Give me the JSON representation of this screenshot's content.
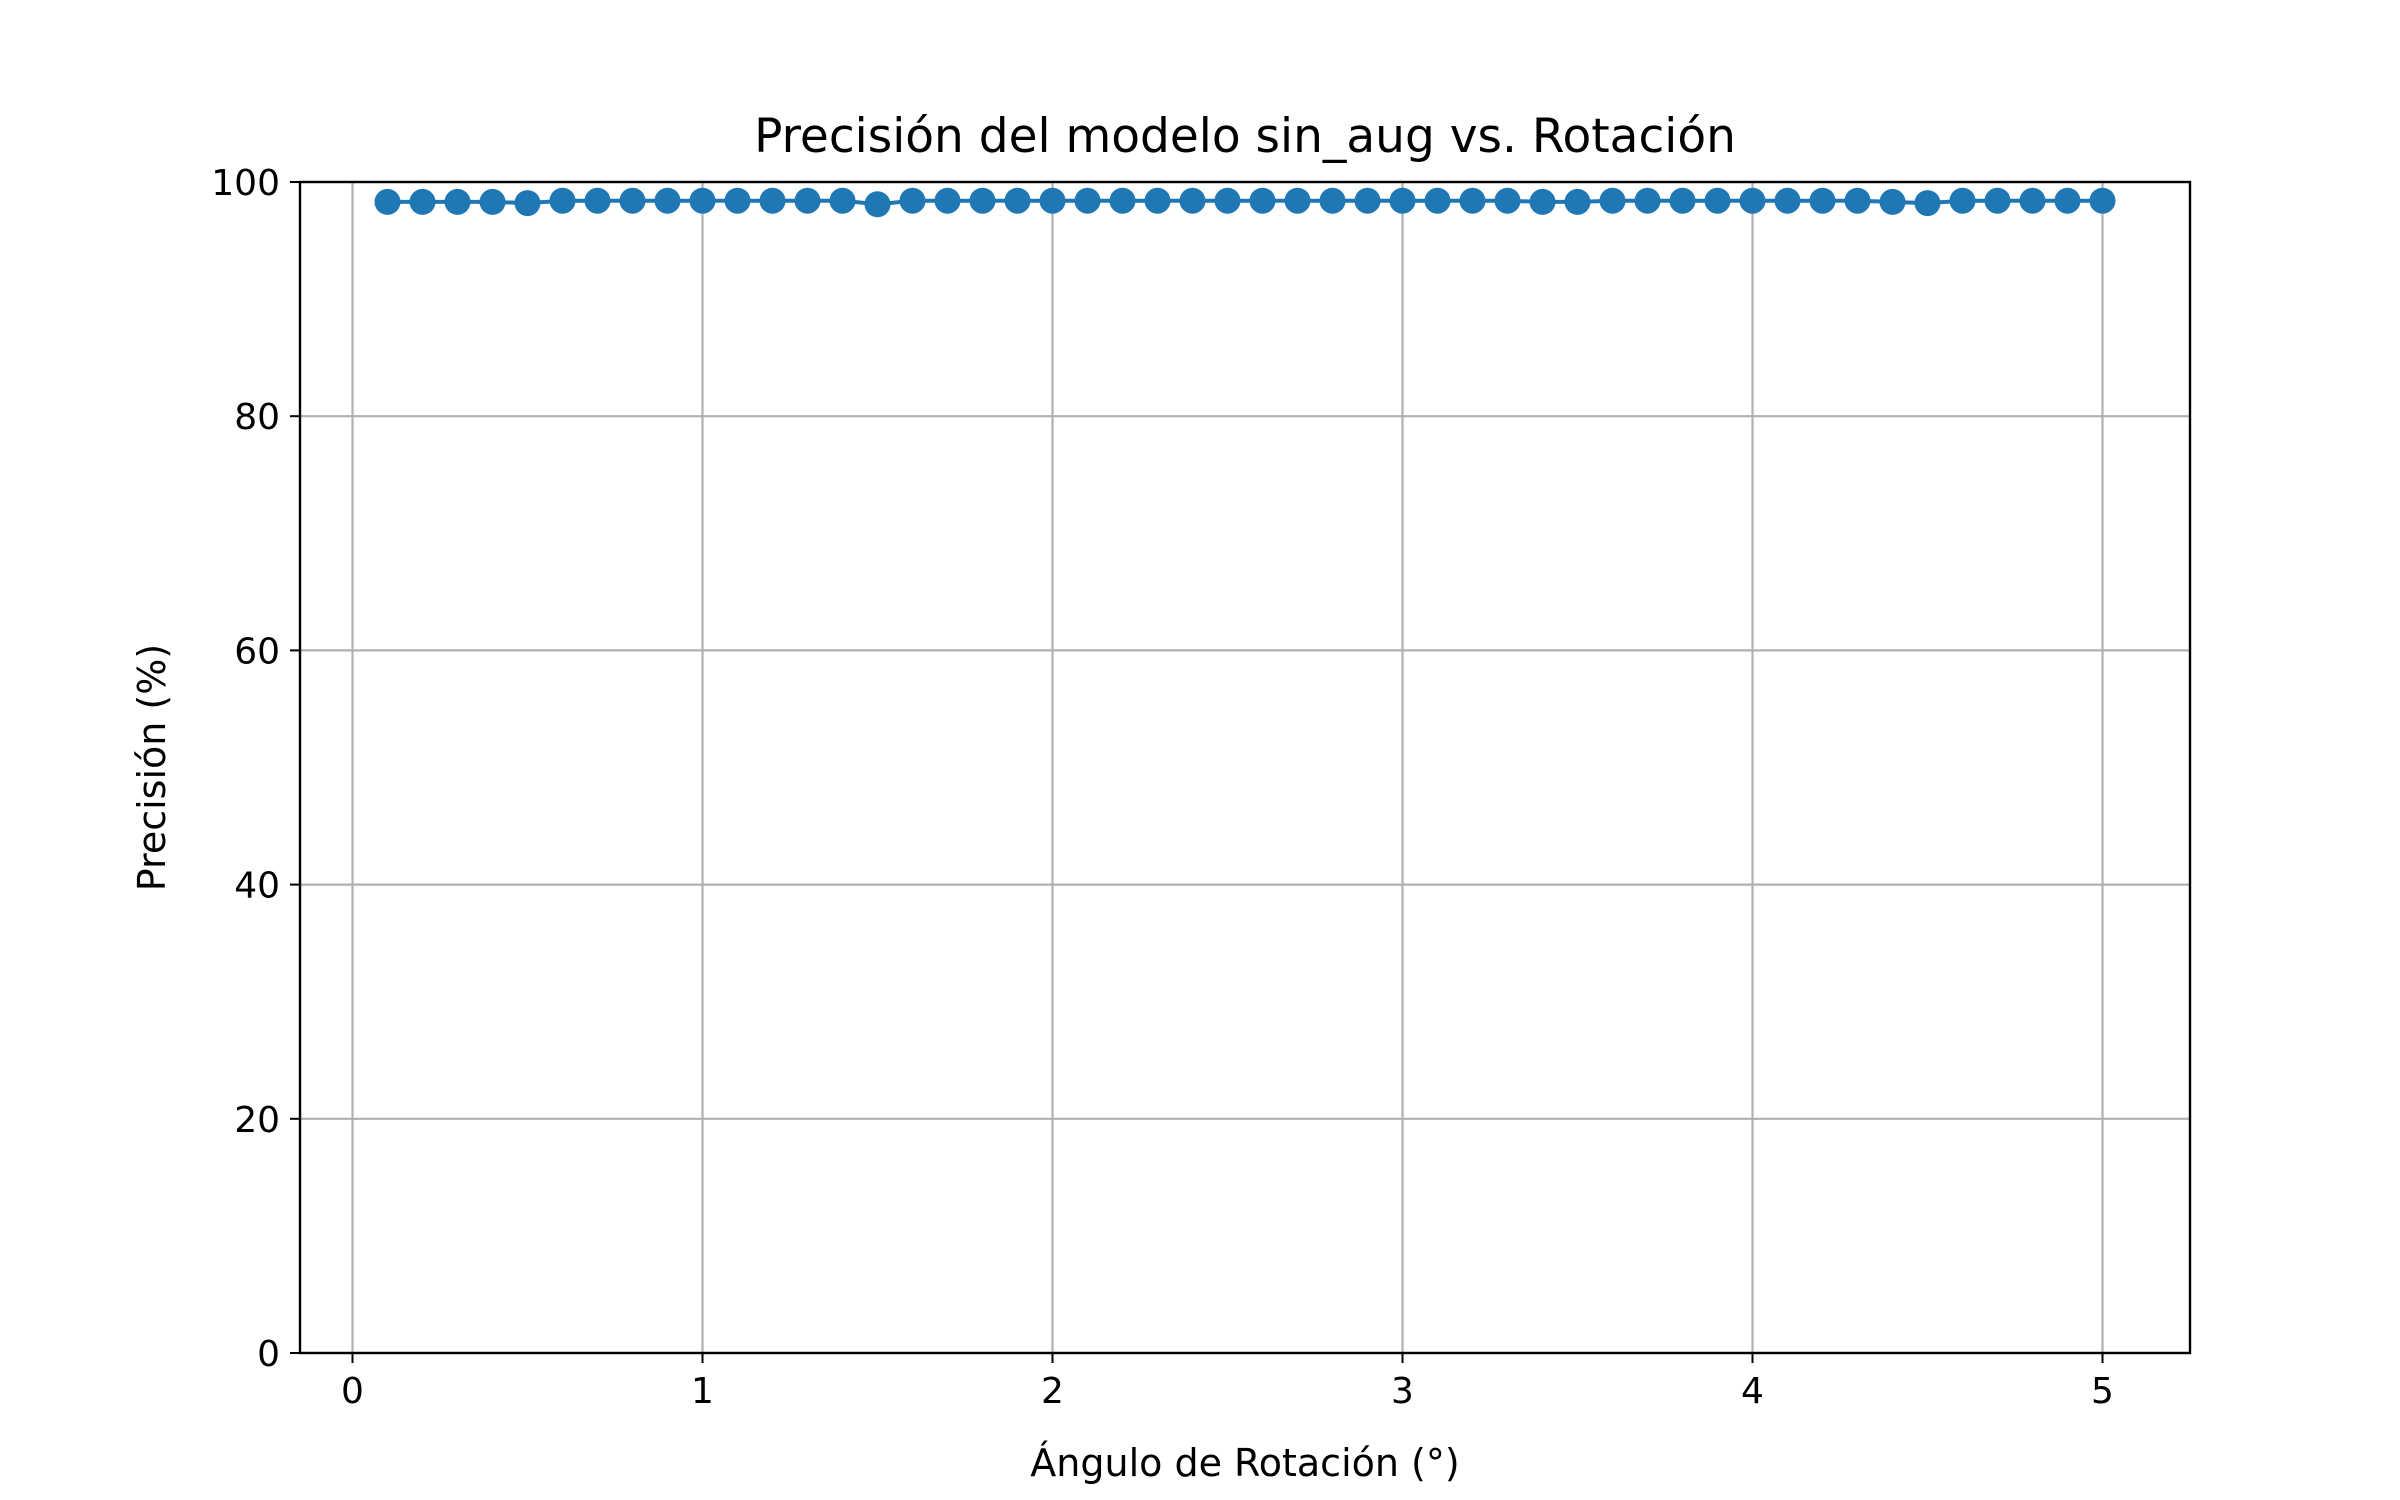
{
  "chart_data": {
    "type": "line",
    "title": "Precisión del modelo sin_aug vs. Rotación",
    "xlabel": "Ángulo de Rotación (°)",
    "ylabel": "Precisión (%)",
    "xlim": [
      -0.15,
      5.25
    ],
    "ylim": [
      0,
      100
    ],
    "xticks": [
      0,
      1,
      2,
      3,
      4,
      5
    ],
    "yticks": [
      0,
      20,
      40,
      60,
      80,
      100
    ],
    "xtick_labels": [
      "0",
      "1",
      "2",
      "3",
      "4",
      "5"
    ],
    "ytick_labels": [
      "0",
      "20",
      "40",
      "60",
      "80",
      "100"
    ],
    "grid": true,
    "marker": "circle",
    "color": "#1f77b4",
    "series": [
      {
        "x": [
          0.1,
          0.2,
          0.3,
          0.4,
          0.5,
          0.6,
          0.7,
          0.8,
          0.9,
          1.0,
          1.1,
          1.2,
          1.3,
          1.4,
          1.5,
          1.6,
          1.7,
          1.8,
          1.9,
          2.0,
          2.1,
          2.2,
          2.3,
          2.4,
          2.5,
          2.6,
          2.7,
          2.8,
          2.9,
          3.0,
          3.1,
          3.2,
          3.3,
          3.4,
          3.5,
          3.6,
          3.7,
          3.8,
          3.9,
          4.0,
          4.1,
          4.2,
          4.3,
          4.4,
          4.5,
          4.6,
          4.7,
          4.8,
          4.9,
          5.0
        ],
        "values": [
          98.3,
          98.3,
          98.3,
          98.3,
          98.2,
          98.4,
          98.4,
          98.4,
          98.4,
          98.4,
          98.4,
          98.4,
          98.4,
          98.4,
          98.1,
          98.4,
          98.4,
          98.4,
          98.4,
          98.4,
          98.4,
          98.4,
          98.4,
          98.4,
          98.4,
          98.4,
          98.4,
          98.4,
          98.4,
          98.4,
          98.4,
          98.4,
          98.4,
          98.3,
          98.3,
          98.4,
          98.4,
          98.4,
          98.4,
          98.4,
          98.4,
          98.4,
          98.4,
          98.3,
          98.2,
          98.4,
          98.4,
          98.4,
          98.4,
          98.4
        ]
      }
    ]
  }
}
